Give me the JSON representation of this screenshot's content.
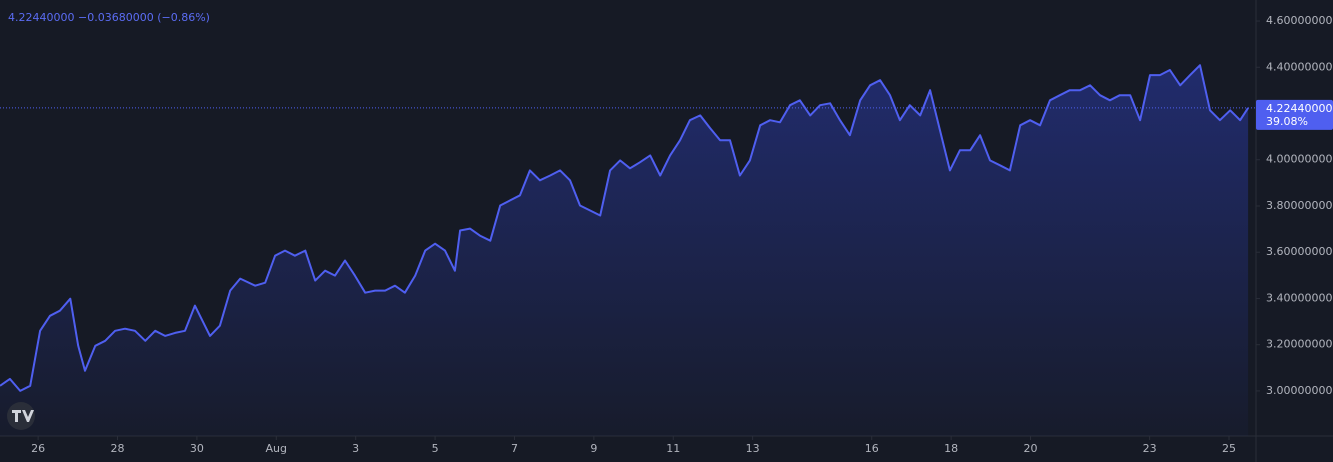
{
  "chart_data": {
    "type": "area",
    "header_price": "4.22440000",
    "header_change": "−0.03680000 (−0.86%)",
    "last_price": {
      "value": 4.2244,
      "label": "4.22440000"
    },
    "last_change_percent": "39.08%",
    "color": "#4f5ff0",
    "xlim": [
      -0.96,
      30.68
    ],
    "ylim": [
      2.805,
      4.691
    ],
    "xticks": [
      {
        "value": 0,
        "label": "26"
      },
      {
        "value": 2,
        "label": "28"
      },
      {
        "value": 4,
        "label": "30"
      },
      {
        "value": 6,
        "label": "Aug"
      },
      {
        "value": 8,
        "label": "3"
      },
      {
        "value": 10,
        "label": "5"
      },
      {
        "value": 12,
        "label": "7"
      },
      {
        "value": 14,
        "label": "9"
      },
      {
        "value": 16,
        "label": "11"
      },
      {
        "value": 18,
        "label": "13"
      },
      {
        "value": 21,
        "label": "16"
      },
      {
        "value": 23,
        "label": "18"
      },
      {
        "value": 25,
        "label": "20"
      },
      {
        "value": 28,
        "label": "23"
      },
      {
        "value": 30,
        "label": "25"
      }
    ],
    "yticks": [
      {
        "value": 3.0,
        "label": "3.00000000"
      },
      {
        "value": 3.2,
        "label": "3.20000000"
      },
      {
        "value": 3.4,
        "label": "3.40000000"
      },
      {
        "value": 3.6,
        "label": "3.60000000"
      },
      {
        "value": 3.8,
        "label": "3.80000000"
      },
      {
        "value": 4.0,
        "label": "4.00000000"
      },
      {
        "value": 4.2,
        "label": "4.20000000"
      },
      {
        "value": 4.4,
        "label": "4.40000000"
      },
      {
        "value": 4.6,
        "label": "4.60000000"
      }
    ],
    "x": [
      -0.96,
      -0.71,
      -0.45,
      -0.2,
      0.05,
      0.3,
      0.55,
      0.81,
      1.01,
      1.18,
      1.44,
      1.69,
      1.94,
      2.19,
      2.44,
      2.7,
      2.95,
      3.2,
      3.45,
      3.7,
      3.95,
      4.33,
      4.58,
      4.84,
      5.09,
      5.47,
      5.72,
      5.97,
      6.22,
      6.47,
      6.73,
      6.98,
      7.23,
      7.48,
      7.73,
      7.98,
      8.24,
      8.49,
      8.74,
      8.99,
      9.24,
      9.5,
      9.75,
      10.0,
      10.25,
      10.5,
      10.63,
      10.88,
      11.13,
      11.39,
      11.64,
      11.89,
      12.14,
      12.39,
      12.64,
      12.9,
      13.15,
      13.4,
      13.65,
      13.9,
      14.16,
      14.41,
      14.66,
      14.91,
      15.16,
      15.42,
      15.67,
      15.92,
      16.17,
      16.42,
      16.68,
      16.93,
      17.18,
      17.43,
      17.68,
      17.93,
      18.19,
      18.44,
      18.69,
      18.94,
      19.19,
      19.45,
      19.7,
      19.95,
      20.2,
      20.45,
      20.71,
      20.96,
      21.21,
      21.46,
      21.71,
      21.96,
      22.22,
      22.47,
      22.72,
      22.97,
      23.22,
      23.48,
      23.73,
      23.98,
      24.23,
      24.48,
      24.74,
      24.99,
      25.24,
      25.49,
      25.74,
      25.99,
      26.25,
      26.5,
      26.75,
      27.0,
      27.25,
      27.51,
      27.76,
      28.01,
      28.26,
      28.51,
      28.77,
      29.02,
      29.27,
      29.52,
      29.77,
      30.03,
      30.28,
      30.48
    ],
    "values": [
      3.022,
      3.052,
      3.0,
      3.022,
      3.26,
      3.325,
      3.347,
      3.399,
      3.195,
      3.087,
      3.195,
      3.217,
      3.26,
      3.269,
      3.26,
      3.217,
      3.26,
      3.238,
      3.251,
      3.26,
      3.369,
      3.238,
      3.282,
      3.434,
      3.486,
      3.455,
      3.468,
      3.585,
      3.607,
      3.585,
      3.607,
      3.477,
      3.52,
      3.499,
      3.564,
      3.499,
      3.425,
      3.434,
      3.434,
      3.455,
      3.425,
      3.499,
      3.607,
      3.637,
      3.607,
      3.52,
      3.694,
      3.702,
      3.672,
      3.65,
      3.802,
      3.824,
      3.846,
      3.954,
      3.911,
      3.932,
      3.954,
      3.911,
      3.802,
      3.781,
      3.759,
      3.954,
      3.997,
      3.963,
      3.989,
      4.019,
      3.932,
      4.019,
      4.084,
      4.171,
      4.192,
      4.136,
      4.084,
      4.084,
      3.932,
      3.997,
      4.149,
      4.171,
      4.162,
      4.236,
      4.257,
      4.192,
      4.236,
      4.244,
      4.171,
      4.106,
      4.257,
      4.322,
      4.344,
      4.279,
      4.171,
      4.236,
      4.192,
      4.301,
      4.127,
      3.954,
      4.041,
      4.041,
      4.106,
      3.997,
      3.976,
      3.954,
      4.149,
      4.171,
      4.149,
      4.257,
      4.279,
      4.301,
      4.301,
      4.322,
      4.279,
      4.257,
      4.279,
      4.279,
      4.171,
      4.366,
      4.366,
      4.388,
      4.322,
      4.366,
      4.409,
      4.214,
      4.171,
      4.214,
      4.171,
      4.2244
    ]
  }
}
